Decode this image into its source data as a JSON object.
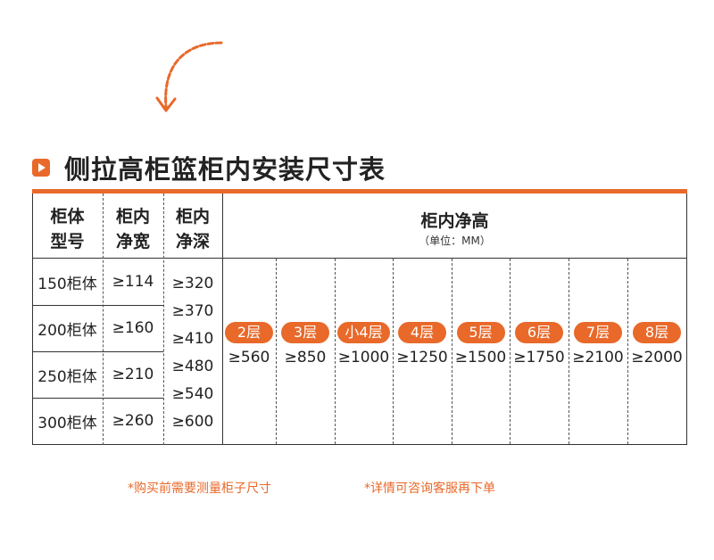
{
  "title": "侧拉高柜篮柜内安装尺寸表",
  "header": {
    "col1": [
      "柜体",
      "型号"
    ],
    "col2": [
      "柜内",
      "净宽"
    ],
    "col3": [
      "柜内",
      "净深"
    ],
    "height_title": "柜内净高",
    "height_unit": "（单位：MM）"
  },
  "models": [
    {
      "name": "150柜体",
      "width": "≥114"
    },
    {
      "name": "200柜体",
      "width": "≥160"
    },
    {
      "name": "250柜体",
      "width": "≥210"
    },
    {
      "name": "300柜体",
      "width": "≥260"
    }
  ],
  "depths": [
    "≥320",
    "≥370",
    "≥410",
    "≥480",
    "≥540",
    "≥600"
  ],
  "heights": [
    {
      "layer": "2层",
      "value": "≥560"
    },
    {
      "layer": "3层",
      "value": "≥850"
    },
    {
      "layer": "小4层",
      "value": "≥1000"
    },
    {
      "layer": "4层",
      "value": "≥1250"
    },
    {
      "layer": "5层",
      "value": "≥1500"
    },
    {
      "layer": "6层",
      "value": "≥1750"
    },
    {
      "layer": "7层",
      "value": "≥2100"
    },
    {
      "layer": "8层",
      "value": "≥2000"
    }
  ],
  "notes": [
    "*购买前需要测量柜子尺寸",
    "*详情可咨询客服再下单"
  ],
  "colors": {
    "accent": "#e8692a"
  }
}
